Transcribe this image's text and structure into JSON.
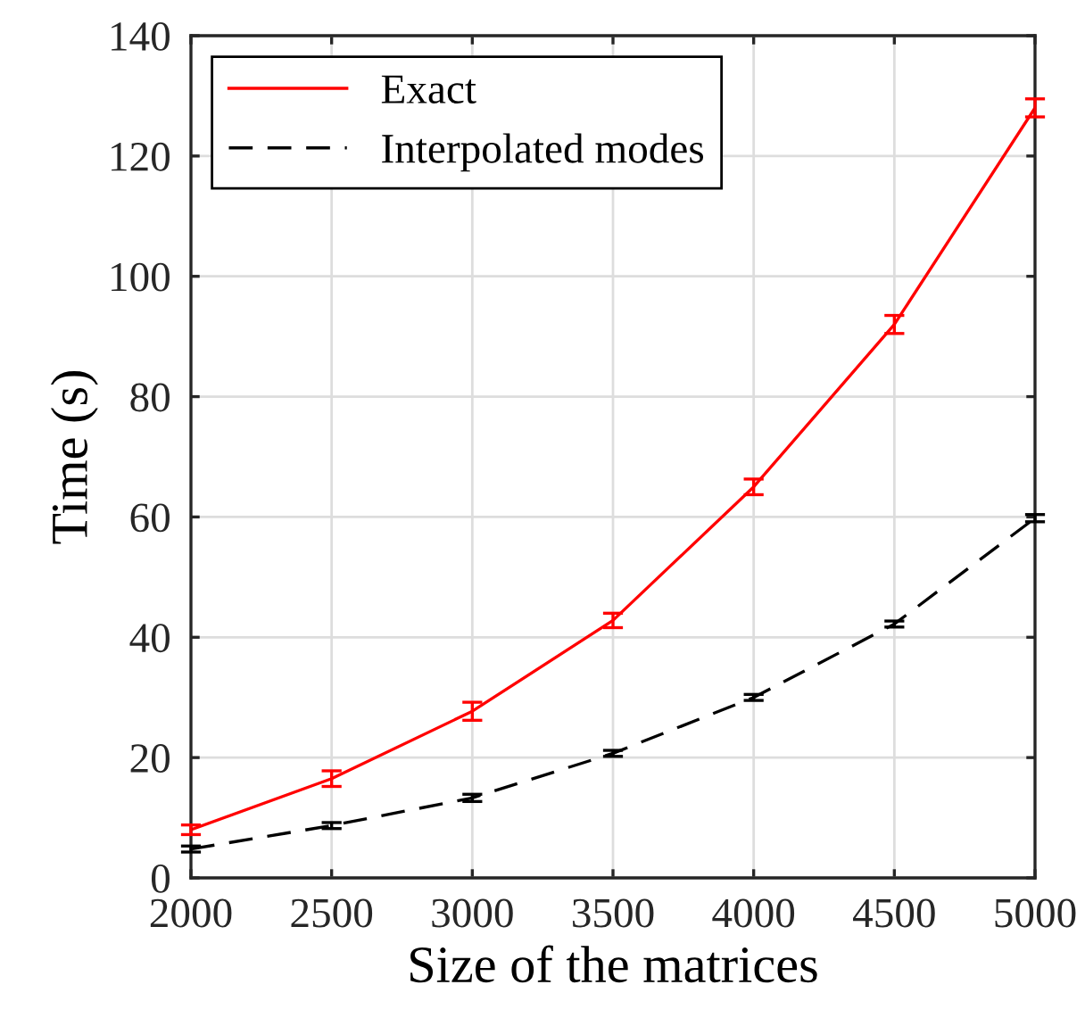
{
  "chart_data": {
    "type": "line",
    "xlabel": "Size of the matrices",
    "ylabel": "Time (s)",
    "x": [
      2000,
      2500,
      3000,
      3500,
      4000,
      4500,
      5000
    ],
    "series": [
      {
        "name": "Exact",
        "color": "#ff0000",
        "line_style": "solid",
        "values": [
          8,
          16.5,
          27.7,
          42.8,
          65,
          92,
          128
        ],
        "errors": [
          0.8,
          1.3,
          1.5,
          1.2,
          1.3,
          1.5,
          1.5
        ]
      },
      {
        "name": "Interpolated modes",
        "color": "#000000",
        "line_style": "dashed",
        "values": [
          4.8,
          8.7,
          13.3,
          20.7,
          30,
          42.2,
          59.8
        ],
        "errors": [
          0.5,
          0.5,
          0.6,
          0.5,
          0.5,
          0.5,
          0.6
        ]
      }
    ],
    "xlim": [
      2000,
      5000
    ],
    "xticks": [
      2000,
      2500,
      3000,
      3500,
      4000,
      4500,
      5000
    ],
    "ylim": [
      0,
      140
    ],
    "yticks": [
      0,
      20,
      40,
      60,
      80,
      100,
      120,
      140
    ],
    "grid": true,
    "legend": "top left",
    "marker": "none"
  }
}
